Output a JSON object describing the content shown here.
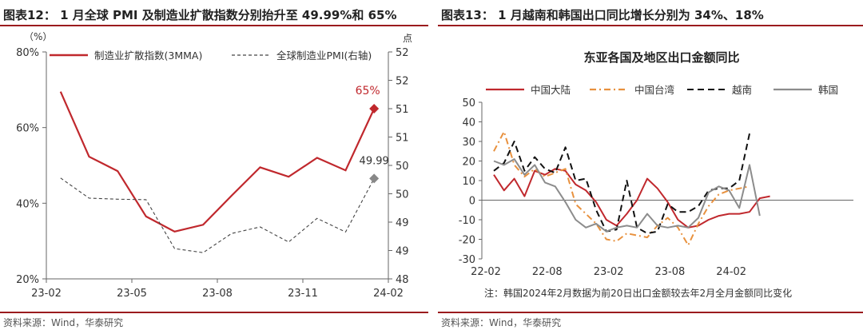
{
  "left": {
    "title": "图表12：  1 月全球 PMI 及制造业扩散指数分别抬升至 49.99%和 65%",
    "source": "资料来源：Wind，华泰研究"
  },
  "right": {
    "title": "图表13：  1 月越南和韩国出口同比增长分别为 34%、18%",
    "source": "资料来源：Wind，华泰研究"
  },
  "chart_data": [
    {
      "type": "line",
      "title": "",
      "ylabel_left": "（%）",
      "ylabel_right": "点",
      "x": [
        "23-02",
        "23-03",
        "23-04",
        "23-05",
        "23-06",
        "23-07",
        "23-08",
        "23-09",
        "23-10",
        "23-11",
        "23-12",
        "24-01"
      ],
      "x_ticks": [
        "23-02",
        "23-05",
        "23-08",
        "23-11",
        "24-02"
      ],
      "ylim_left": [
        20,
        80
      ],
      "yticks_left": [
        "20%",
        "40%",
        "60%",
        "80%"
      ],
      "ylim_right": [
        48,
        52.5
      ],
      "yticks_right": [
        "48",
        "49",
        "49",
        "50",
        "50",
        "51",
        "51",
        "52",
        "52"
      ],
      "series": [
        {
          "name": "制造业扩散指数(3MMA)",
          "axis": "left",
          "color": "#c0282d",
          "style": "solid",
          "values": [
            69.5,
            52.3,
            48.5,
            36.5,
            32.5,
            34.3,
            42.0,
            49.5,
            47.0,
            52.0,
            48.7,
            65.0
          ]
        },
        {
          "name": "全球制造业PMI(右轴)",
          "axis": "right",
          "color": "#444444",
          "style": "dashed",
          "values": [
            50.0,
            49.6,
            49.58,
            49.57,
            48.6,
            48.52,
            48.9,
            49.03,
            48.73,
            49.2,
            48.93,
            49.99
          ]
        }
      ],
      "annotations": [
        {
          "text": "65%",
          "series": 0,
          "index": 11,
          "color": "#c0282d"
        },
        {
          "text": "49.99",
          "series": 1,
          "index": 11,
          "color": "#333333"
        }
      ],
      "legend": "top",
      "grid": false
    },
    {
      "type": "line",
      "title": "东亚各国及地区出口金额同比",
      "x_ticks": [
        "22-02",
        "22-08",
        "23-02",
        "23-08",
        "24-02"
      ],
      "ylim": [
        -30,
        50
      ],
      "yticks": [
        -30,
        -20,
        -10,
        0,
        10,
        20,
        30,
        40,
        50
      ],
      "note": "注：韩国2024年2月数据为前20日出口金额较去年2月全月金额同比变化",
      "legend": "top",
      "grid": false,
      "series": [
        {
          "name": "中国大陆",
          "color": "#c0282d",
          "style": "solid",
          "values": [
            13,
            5,
            11,
            2,
            15,
            13,
            16,
            15,
            8,
            5,
            -1,
            -10,
            -13,
            -7,
            0,
            11,
            6,
            -1,
            -10,
            -14,
            -13,
            -10,
            -8,
            -7,
            -7,
            -6,
            1,
            2
          ]
        },
        {
          "name": "中国台湾",
          "color": "#e8913e",
          "style": "dashdot",
          "values": [
            25,
            35,
            18,
            12,
            16,
            12,
            14,
            16,
            -2,
            -7,
            -12,
            -20,
            -21,
            -17,
            -18,
            -19,
            -13,
            -9,
            -14,
            -23,
            -12,
            -3,
            3,
            5,
            6,
            7,
            null,
            null
          ]
        },
        {
          "name": "越南",
          "color": "#111111",
          "style": "dashed",
          "values": [
            15,
            19,
            30,
            15,
            22,
            16,
            14,
            27,
            10,
            11,
            -5,
            -16,
            -15,
            10,
            -14,
            -17,
            -16,
            -2,
            -6,
            -6,
            -3,
            5,
            6,
            6,
            10,
            34,
            null,
            null
          ]
        },
        {
          "name": "韩国",
          "color": "#8c8c8c",
          "style": "solid",
          "values": [
            20,
            18,
            21,
            13,
            18,
            9,
            7,
            -1,
            -10,
            -14,
            -12,
            -16,
            -14,
            -13,
            -14,
            -7,
            -13,
            -14,
            -13,
            -14,
            -9,
            4,
            7,
            5,
            -4,
            18,
            -8,
            null
          ]
        }
      ]
    }
  ]
}
